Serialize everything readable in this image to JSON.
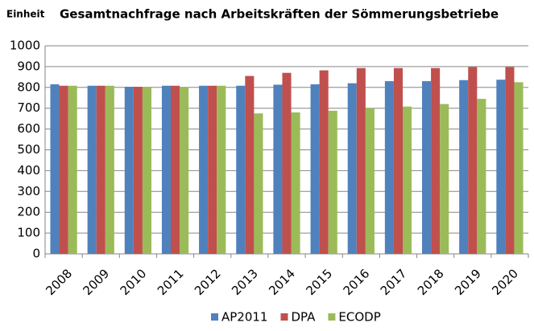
{
  "chart_data": {
    "type": "bar",
    "title": "Gesamtnachfrage nach Arbeitskräften der Sömmerungsbetriebe",
    "y_label": "Einheit",
    "categories": [
      "2008",
      "2009",
      "2010",
      "2011",
      "2012",
      "2013",
      "2014",
      "2015",
      "2016",
      "2017",
      "2018",
      "2019",
      "2020"
    ],
    "series": [
      {
        "name": "AP2011",
        "color": "#4f81bd",
        "values": [
          815,
          808,
          803,
          808,
          808,
          808,
          813,
          815,
          820,
          830,
          830,
          835,
          837
        ]
      },
      {
        "name": "DPA",
        "color": "#c0504d",
        "values": [
          808,
          808,
          803,
          808,
          808,
          855,
          870,
          882,
          893,
          893,
          893,
          898,
          898
        ]
      },
      {
        "name": "ECODP",
        "color": "#9bbb59",
        "values": [
          808,
          808,
          803,
          800,
          808,
          675,
          680,
          688,
          700,
          708,
          720,
          745,
          825
        ]
      }
    ],
    "ylim": [
      0,
      1000
    ],
    "yticks": [
      0,
      100,
      200,
      300,
      400,
      500,
      600,
      700,
      800,
      900,
      1000
    ],
    "grid": true,
    "legend": "bottom"
  }
}
